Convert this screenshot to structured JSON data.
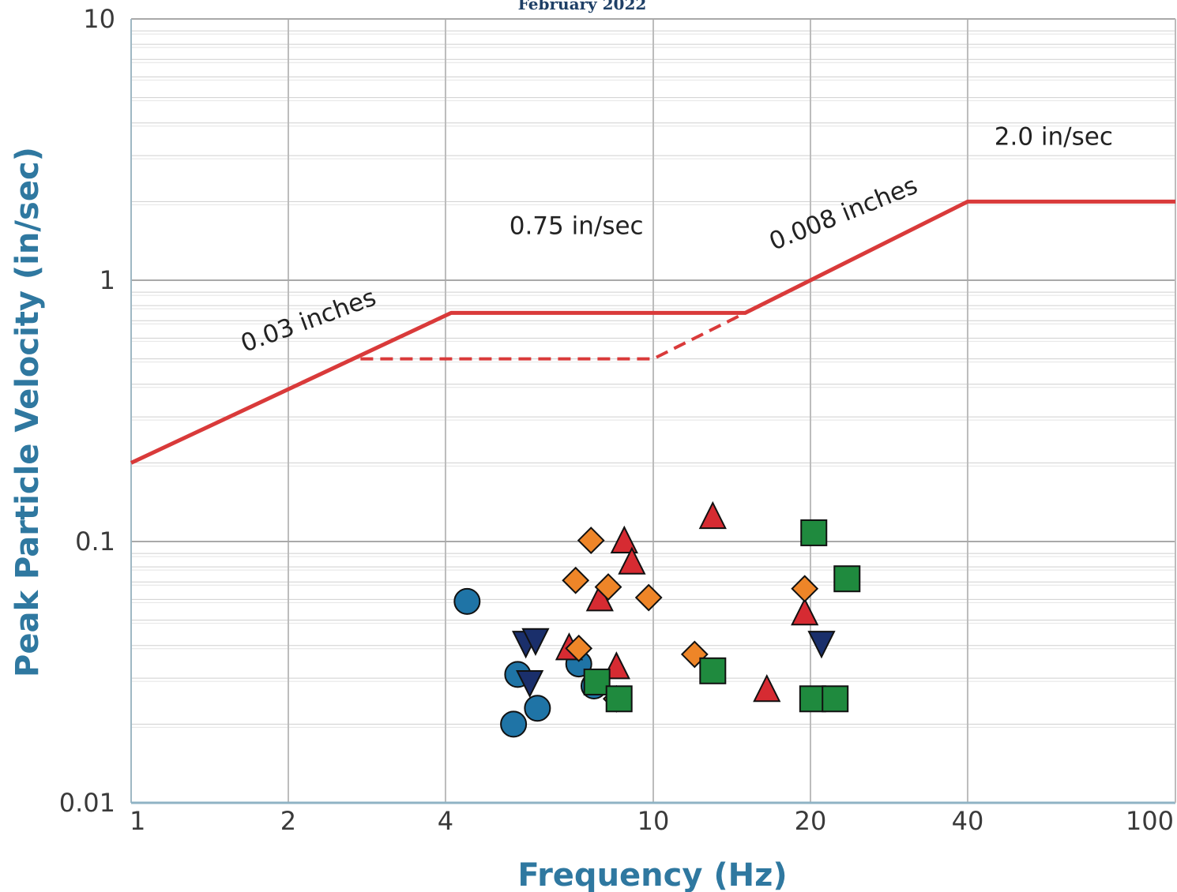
{
  "chart_data": {
    "type": "scatter",
    "title": "February 2022",
    "xlabel": "Frequency (Hz)",
    "ylabel": "Peak Particle Velocity (in/sec)",
    "x_scale": "log",
    "y_scale": "log",
    "xlim": [
      1,
      100
    ],
    "ylim": [
      0.01,
      10
    ],
    "x_ticks": [
      {
        "value": 1,
        "label": "1"
      },
      {
        "value": 2,
        "label": "2"
      },
      {
        "value": 4,
        "label": "4"
      },
      {
        "value": 10,
        "label": "10"
      },
      {
        "value": 20,
        "label": "20"
      },
      {
        "value": 40,
        "label": "40"
      },
      {
        "value": 100,
        "label": "100"
      }
    ],
    "y_ticks": [
      {
        "value": 10,
        "label": "10"
      },
      {
        "value": 1,
        "label": "1"
      },
      {
        "value": 0.1,
        "label": "0.1"
      },
      {
        "value": 0.01,
        "label": "0.01"
      }
    ],
    "grid": true,
    "limit_line": {
      "color": "#d93a3a",
      "points": [
        [
          1,
          0.2
        ],
        [
          4.1,
          0.75
        ],
        [
          15,
          0.75
        ],
        [
          40,
          2.0
        ],
        [
          100,
          2.0
        ]
      ]
    },
    "limit_line_dashed": {
      "color": "#d93a3a",
      "points": [
        [
          2.75,
          0.5
        ],
        [
          10,
          0.5
        ],
        [
          15,
          0.75
        ]
      ]
    },
    "annotations": [
      {
        "text": "0.03 inches",
        "x": 1.65,
        "y": 0.53,
        "rotate": -20
      },
      {
        "text": "0.75 in/sec",
        "x": 5.3,
        "y": 1.5,
        "rotate": 0
      },
      {
        "text": "0.008 inches",
        "x": 17,
        "y": 1.3,
        "rotate": -22
      },
      {
        "text": "2.0 in/sec",
        "x": 45,
        "y": 3.3,
        "rotate": 0
      }
    ],
    "series": [
      {
        "marker": "circle",
        "color": "#1f74a6",
        "points": [
          [
            4.4,
            0.059
          ],
          [
            5.5,
            0.031
          ],
          [
            5.4,
            0.02
          ],
          [
            6.0,
            0.023
          ],
          [
            7.2,
            0.034
          ],
          [
            7.7,
            0.028
          ]
        ]
      },
      {
        "marker": "triangle-down",
        "color": "#1a2f6b",
        "points": [
          [
            5.7,
            0.041
          ],
          [
            5.95,
            0.042
          ],
          [
            5.8,
            0.029
          ],
          [
            21.0,
            0.041
          ]
        ]
      },
      {
        "marker": "triangle-up",
        "color": "#d62b32",
        "points": [
          [
            6.9,
            0.039
          ],
          [
            7.9,
            0.06
          ],
          [
            8.5,
            0.033
          ],
          [
            8.8,
            0.1
          ],
          [
            9.1,
            0.083
          ],
          [
            13.0,
            0.124
          ],
          [
            16.5,
            0.027
          ],
          [
            19.5,
            0.053
          ]
        ]
      },
      {
        "marker": "diamond",
        "color": "#ee8528",
        "points": [
          [
            7.1,
            0.071
          ],
          [
            7.6,
            0.101
          ],
          [
            7.2,
            0.039
          ],
          [
            8.2,
            0.067
          ],
          [
            9.8,
            0.061
          ],
          [
            12.0,
            0.037
          ],
          [
            8.5,
            0.025
          ],
          [
            19.5,
            0.066
          ]
        ]
      },
      {
        "marker": "square",
        "color": "#1f8a3e",
        "points": [
          [
            7.8,
            0.029
          ],
          [
            8.6,
            0.025
          ],
          [
            13.0,
            0.032
          ],
          [
            20.3,
            0.108
          ],
          [
            23.5,
            0.072
          ],
          [
            20.2,
            0.025
          ],
          [
            22.3,
            0.025
          ]
        ]
      }
    ]
  }
}
